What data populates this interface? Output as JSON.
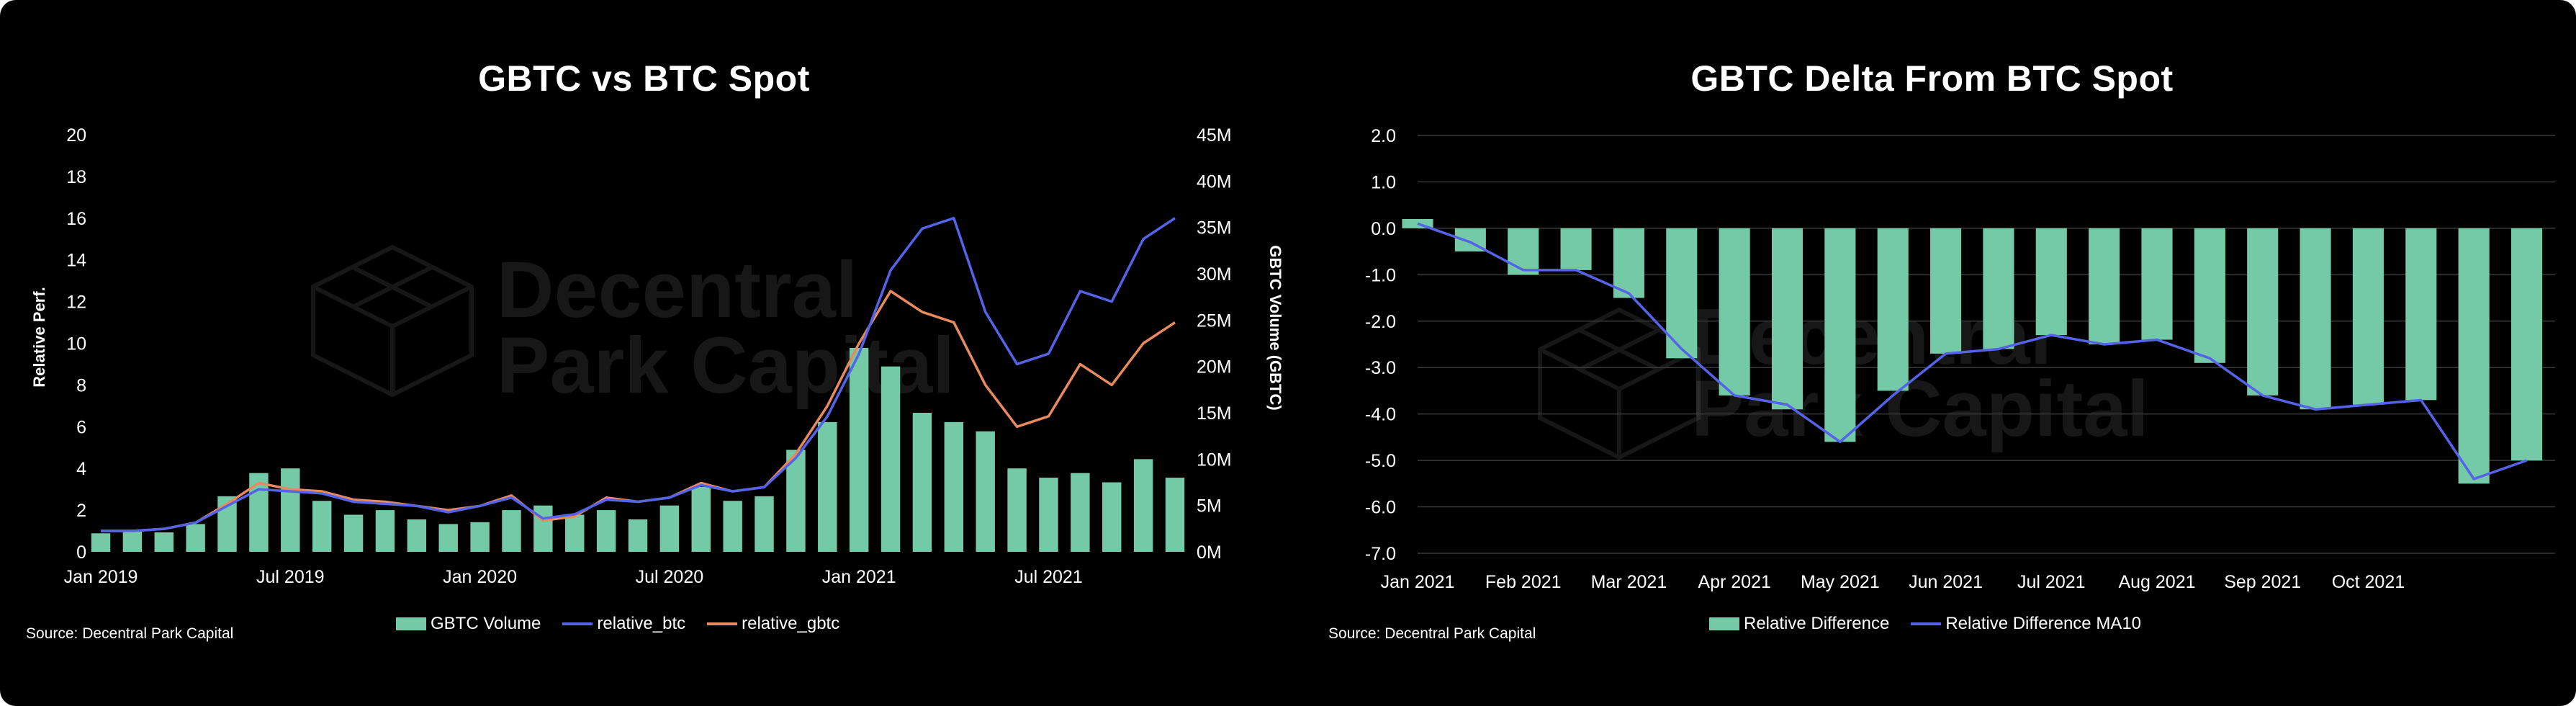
{
  "charts": [
    {
      "title": "GBTC vs BTC Spot",
      "source": "Source: Decentral Park Capital",
      "watermark": [
        "Decentral",
        "Park Capital"
      ],
      "legend": [
        "GBTC Volume",
        "relative_btc",
        "relative_gbtc"
      ]
    },
    {
      "title": "GBTC Delta From BTC Spot",
      "source": "Source: Decentral Park Capital",
      "watermark": [
        "Decentral",
        "Park Capital"
      ],
      "legend": [
        "Relative Difference",
        "Relative Difference MA10"
      ]
    }
  ],
  "chart_data": [
    {
      "type": "line",
      "title": "GBTC vs BTC Spot",
      "ylabel": "Relative Perf.",
      "y2label": "GBTC Volume (GBTC)",
      "ylim": [
        0,
        20
      ],
      "y2lim": [
        0,
        45000000
      ],
      "yticks": [
        "0",
        "2",
        "4",
        "6",
        "8",
        "10",
        "12",
        "14",
        "16",
        "18",
        "20"
      ],
      "y2ticks": [
        "0M",
        "5M",
        "10M",
        "15M",
        "20M",
        "25M",
        "30M",
        "35M",
        "40M",
        "45M"
      ],
      "xticks": [
        "Jan 2019",
        "Jul 2019",
        "Jan 2020",
        "Jul 2020",
        "Jan 2021",
        "Jul 2021"
      ],
      "x": [
        "2019-01",
        "2019-02",
        "2019-03",
        "2019-04",
        "2019-05",
        "2019-06",
        "2019-07",
        "2019-08",
        "2019-09",
        "2019-10",
        "2019-11",
        "2019-12",
        "2020-01",
        "2020-02",
        "2020-03",
        "2020-04",
        "2020-05",
        "2020-06",
        "2020-07",
        "2020-08",
        "2020-09",
        "2020-10",
        "2020-11",
        "2020-12",
        "2021-01",
        "2021-02",
        "2021-03",
        "2021-04",
        "2021-05",
        "2021-06",
        "2021-07",
        "2021-08",
        "2021-09",
        "2021-10",
        "2021-11"
      ],
      "series": [
        {
          "name": "GBTC Volume",
          "kind": "bar",
          "axis": "right",
          "color": "#74c9a6",
          "values": [
            2000000,
            2200000,
            2100000,
            3000000,
            6000000,
            8500000,
            9000000,
            5500000,
            4000000,
            4500000,
            3500000,
            3000000,
            3200000,
            4500000,
            5000000,
            4000000,
            4500000,
            3500000,
            5000000,
            7000000,
            5500000,
            6000000,
            11000000,
            14000000,
            22000000,
            20000000,
            15000000,
            14000000,
            13000000,
            9000000,
            8000000,
            8500000,
            7500000,
            10000000,
            8000000
          ]
        },
        {
          "name": "relative_btc",
          "kind": "line",
          "axis": "left",
          "color": "#5563e8",
          "values": [
            1.0,
            1.0,
            1.1,
            1.4,
            2.2,
            3.0,
            2.9,
            2.8,
            2.4,
            2.3,
            2.2,
            1.9,
            2.2,
            2.6,
            1.6,
            1.8,
            2.5,
            2.4,
            2.6,
            3.2,
            2.9,
            3.1,
            4.5,
            6.5,
            9.5,
            13.5,
            15.5,
            16.0,
            11.5,
            9.0,
            9.5,
            12.5,
            12.0,
            15.0,
            16.0
          ]
        },
        {
          "name": "relative_gbtc",
          "kind": "line",
          "axis": "left",
          "color": "#e8895e",
          "values": [
            1.0,
            1.0,
            1.1,
            1.4,
            2.3,
            3.3,
            3.0,
            2.9,
            2.5,
            2.4,
            2.2,
            2.0,
            2.2,
            2.7,
            1.5,
            1.7,
            2.6,
            2.4,
            2.6,
            3.3,
            2.9,
            3.1,
            4.7,
            7.0,
            10.0,
            12.5,
            11.5,
            11.0,
            8.0,
            6.0,
            6.5,
            9.0,
            8.0,
            10.0,
            11.0
          ]
        }
      ]
    },
    {
      "type": "bar",
      "title": "GBTC Delta From BTC Spot",
      "ylim": [
        -7.0,
        2.0
      ],
      "yticks": [
        "2.0",
        "1.0",
        "0.0",
        "-1.0",
        "-2.0",
        "-3.0",
        "-4.0",
        "-5.0",
        "-6.0",
        "-7.0"
      ],
      "xticks": [
        "Jan 2021",
        "Feb 2021",
        "Mar 2021",
        "Apr 2021",
        "May 2021",
        "Jun 2021",
        "Jul 2021",
        "Aug 2021",
        "Sep 2021",
        "Oct 2021"
      ],
      "x": [
        "2021-01-01",
        "2021-01-15",
        "2021-02-01",
        "2021-02-15",
        "2021-03-01",
        "2021-03-15",
        "2021-04-01",
        "2021-04-15",
        "2021-05-01",
        "2021-05-15",
        "2021-06-01",
        "2021-06-15",
        "2021-07-01",
        "2021-07-15",
        "2021-08-01",
        "2021-08-15",
        "2021-09-01",
        "2021-09-15",
        "2021-10-01",
        "2021-10-15",
        "2021-11-01",
        "2021-11-10"
      ],
      "series": [
        {
          "name": "Relative Difference",
          "kind": "bar",
          "color": "#74c9a6",
          "values": [
            0.2,
            -0.5,
            -1.0,
            -0.9,
            -1.5,
            -2.8,
            -3.6,
            -3.9,
            -4.6,
            -3.5,
            -2.7,
            -2.6,
            -2.3,
            -2.5,
            -2.4,
            -2.9,
            -3.6,
            -3.9,
            -3.8,
            -3.7,
            -5.5,
            -5.0
          ]
        },
        {
          "name": "Relative Difference MA10",
          "kind": "line",
          "color": "#5563e8",
          "values": [
            0.1,
            -0.3,
            -0.9,
            -0.9,
            -1.4,
            -2.6,
            -3.6,
            -3.8,
            -4.6,
            -3.6,
            -2.7,
            -2.6,
            -2.3,
            -2.5,
            -2.4,
            -2.8,
            -3.6,
            -3.9,
            -3.8,
            -3.7,
            -5.4,
            -5.0
          ]
        }
      ]
    }
  ]
}
